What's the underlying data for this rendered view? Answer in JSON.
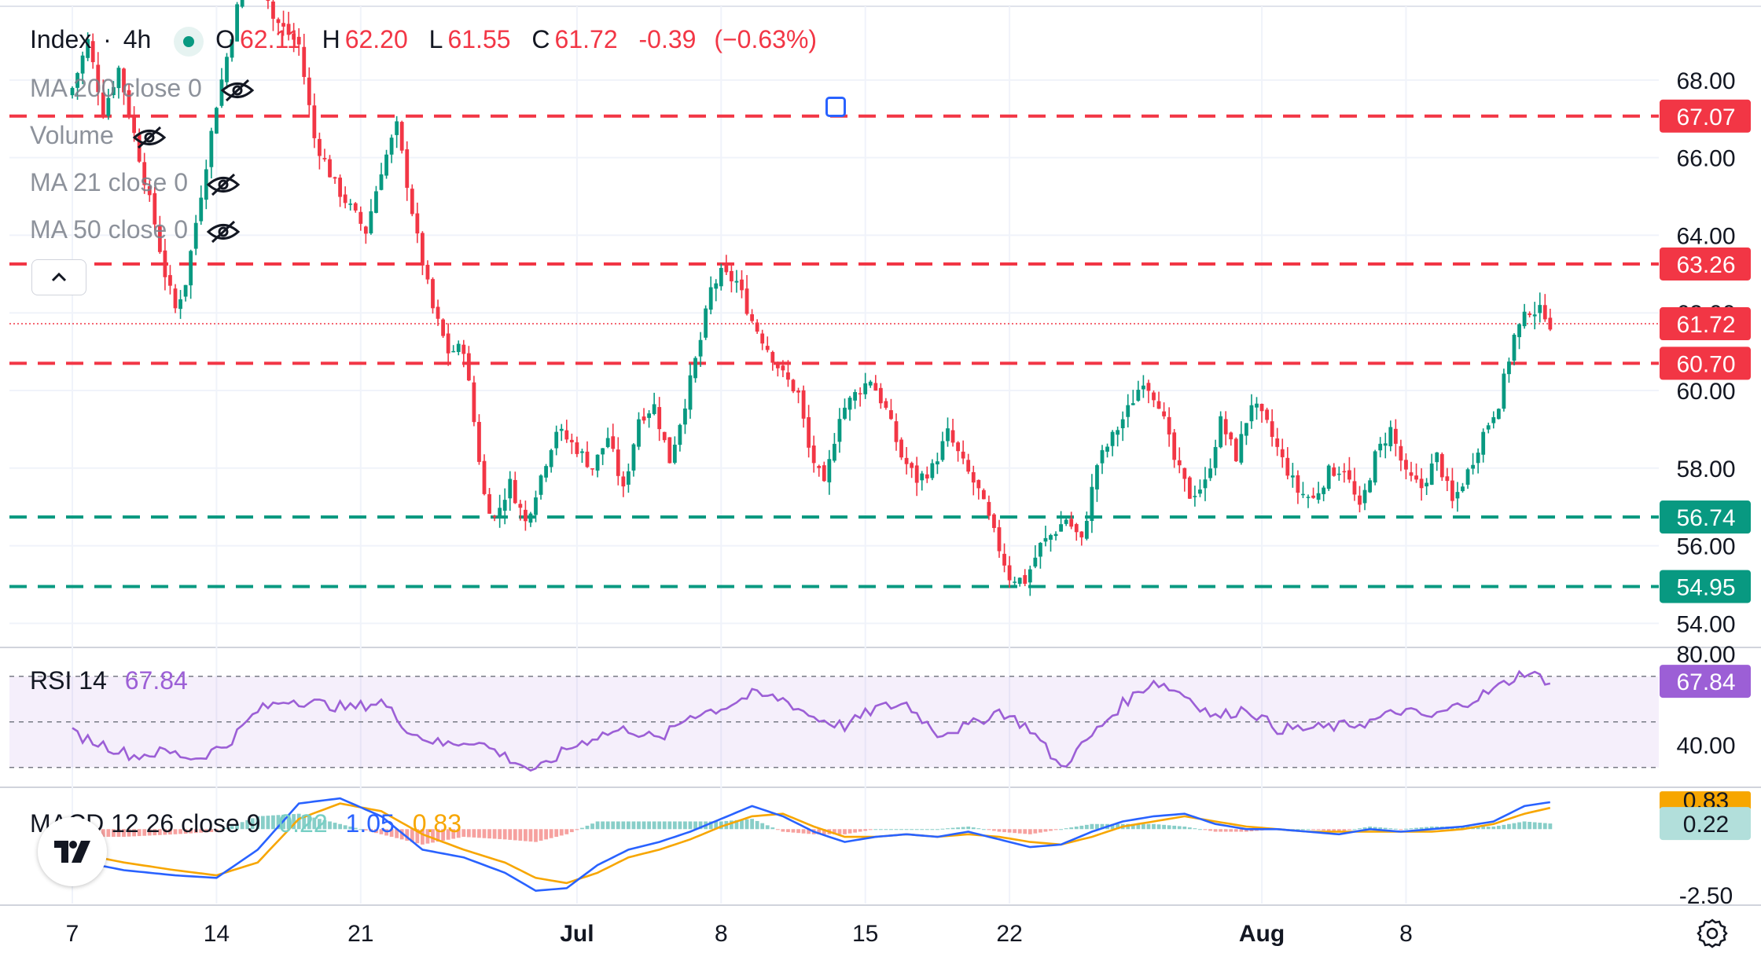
{
  "header": {
    "symbol": "Index",
    "separator": "·",
    "interval": "4h",
    "open_label": "O",
    "open": "62.11",
    "high_label": "H",
    "high": "62.20",
    "low_label": "L",
    "low": "61.55",
    "close_label": "C",
    "close": "61.72",
    "change": "-0.39",
    "change_pct": "(−0.63%)"
  },
  "indicators": {
    "ma200": "MA 200 close 0",
    "volume": "Volume",
    "ma21": "MA 21 close 0",
    "ma50": "MA 50 close 0",
    "rsi_name": "RSI 14",
    "rsi_value": "67.84",
    "macd_name": "MACD 12 26 close 9",
    "macd_hist": "0.22",
    "macd_line": "1.05",
    "macd_signal": "0.83"
  },
  "colors": {
    "up": "#089981",
    "down": "#f23645",
    "rsi": "#9c5fd6",
    "macd": "#2962ff",
    "signal": "#f7a600",
    "resistance": "#f23645",
    "support": "#089981",
    "grid": "#f0f3fa"
  },
  "chart_data": [
    {
      "type": "candlestick",
      "y_axis_ticks": [
        "68.00",
        "66.00",
        "64.00",
        "62.00",
        "60.00",
        "58.00",
        "56.00",
        "54.00"
      ],
      "ylim": [
        53.4,
        69.9
      ],
      "x_axis_ticks": [
        "7",
        "14",
        "21",
        "Jul",
        "8",
        "15",
        "22",
        "Aug",
        "8"
      ],
      "x_tick_positions_bars": [
        0,
        28,
        56,
        98,
        126,
        154,
        182,
        231,
        259
      ],
      "last_close": 61.72,
      "horizontal_levels": [
        {
          "value": 67.07,
          "label": "67.07",
          "kind": "resistance"
        },
        {
          "value": 63.26,
          "label": "63.26",
          "kind": "resistance"
        },
        {
          "value": 61.72,
          "label": "61.72",
          "kind": "last"
        },
        {
          "value": 60.7,
          "label": "60.70",
          "kind": "resistance"
        },
        {
          "value": 56.74,
          "label": "56.74",
          "kind": "support"
        },
        {
          "value": 54.95,
          "label": "54.95",
          "kind": "support"
        }
      ],
      "close_path_anchors": [
        [
          0,
          67.8
        ],
        [
          3,
          69.0
        ],
        [
          6,
          67.2
        ],
        [
          9,
          68.3
        ],
        [
          12,
          66.6
        ],
        [
          16,
          64.3
        ],
        [
          18,
          63.0
        ],
        [
          20,
          62.1
        ],
        [
          22,
          62.8
        ],
        [
          25,
          65.1
        ],
        [
          28,
          67.4
        ],
        [
          31,
          69.2
        ],
        [
          35,
          71.8
        ],
        [
          39,
          69.6
        ],
        [
          44,
          68.9
        ],
        [
          47,
          66.5
        ],
        [
          51,
          65.3
        ],
        [
          54,
          64.7
        ],
        [
          57,
          64.1
        ],
        [
          60,
          65.7
        ],
        [
          63,
          66.8
        ],
        [
          67,
          63.9
        ],
        [
          70,
          62.1
        ],
        [
          73,
          61.0
        ],
        [
          76,
          61.1
        ],
        [
          78,
          59.2
        ],
        [
          80,
          57.3
        ],
        [
          82,
          56.7
        ],
        [
          85,
          57.6
        ],
        [
          88,
          56.6
        ],
        [
          91,
          57.8
        ],
        [
          94,
          59.0
        ],
        [
          98,
          58.5
        ],
        [
          101,
          58.0
        ],
        [
          104,
          58.8
        ],
        [
          107,
          57.4
        ],
        [
          110,
          59.3
        ],
        [
          113,
          59.6
        ],
        [
          116,
          58.2
        ],
        [
          119,
          59.7
        ],
        [
          122,
          61.3
        ],
        [
          124,
          62.6
        ],
        [
          126,
          63.0
        ],
        [
          129,
          62.8
        ],
        [
          132,
          61.8
        ],
        [
          135,
          61.1
        ],
        [
          138,
          60.4
        ],
        [
          141,
          59.9
        ],
        [
          143,
          58.5
        ],
        [
          146,
          57.5
        ],
        [
          149,
          59.4
        ],
        [
          152,
          59.9
        ],
        [
          155,
          60.3
        ],
        [
          158,
          59.5
        ],
        [
          161,
          58.3
        ],
        [
          164,
          57.7
        ],
        [
          167,
          58.0
        ],
        [
          170,
          58.9
        ],
        [
          173,
          58.1
        ],
        [
          176,
          57.4
        ],
        [
          179,
          56.3
        ],
        [
          182,
          55.2
        ],
        [
          185,
          55.1
        ],
        [
          188,
          56.0
        ],
        [
          191,
          56.4
        ],
        [
          193,
          56.7
        ],
        [
          196,
          56.1
        ],
        [
          199,
          58.1
        ],
        [
          202,
          58.8
        ],
        [
          205,
          59.5
        ],
        [
          208,
          60.3
        ],
        [
          211,
          59.7
        ],
        [
          214,
          58.2
        ],
        [
          217,
          57.3
        ],
        [
          220,
          57.6
        ],
        [
          223,
          59.2
        ],
        [
          226,
          58.3
        ],
        [
          229,
          59.7
        ],
        [
          232,
          59.1
        ],
        [
          235,
          58.2
        ],
        [
          238,
          57.4
        ],
        [
          241,
          57.2
        ],
        [
          244,
          57.9
        ],
        [
          247,
          58.0
        ],
        [
          250,
          56.9
        ],
        [
          253,
          58.3
        ],
        [
          256,
          59.0
        ],
        [
          259,
          57.8
        ],
        [
          262,
          57.5
        ],
        [
          265,
          58.3
        ],
        [
          268,
          57.1
        ],
        [
          271,
          57.9
        ],
        [
          274,
          58.9
        ],
        [
          277,
          59.7
        ],
        [
          280,
          61.4
        ],
        [
          283,
          62.1
        ],
        [
          286,
          62.0
        ],
        [
          287,
          61.72
        ]
      ],
      "total_bars": 288
    },
    {
      "type": "line",
      "name": "RSI 14",
      "y_axis_ticks": [
        "80.00",
        "40.00"
      ],
      "ylim": [
        22,
        82
      ],
      "upper_band": 70,
      "middle": 50,
      "lower_band": 30,
      "last_value": 67.84,
      "x_anchors": [
        0,
        6,
        12,
        18,
        24,
        30,
        36,
        42,
        48,
        54,
        60,
        66,
        72,
        78,
        84,
        90,
        96,
        102,
        108,
        114,
        120,
        126,
        132,
        138,
        144,
        150,
        156,
        162,
        168,
        174,
        180,
        186,
        192,
        198,
        204,
        210,
        216,
        222,
        228,
        234,
        240,
        246,
        252,
        258,
        264,
        270,
        276,
        282,
        287
      ],
      "values": [
        45,
        40,
        35,
        37,
        34,
        40,
        55,
        60,
        58,
        56,
        59,
        45,
        40,
        42,
        35,
        28,
        38,
        44,
        47,
        42,
        53,
        56,
        62,
        60,
        52,
        48,
        56,
        58,
        45,
        48,
        55,
        47,
        30,
        44,
        58,
        68,
        62,
        52,
        56,
        47,
        47,
        48,
        50,
        55,
        52,
        58,
        64,
        72,
        67.84
      ]
    },
    {
      "type": "line",
      "name": "MACD 12 26 close 9",
      "y_axis_ticks": [
        "0.83",
        "-2.50"
      ],
      "ylim": [
        -2.9,
        1.6
      ],
      "last_macd": 1.05,
      "last_signal": 0.83,
      "last_hist": 0.22,
      "x_anchors": [
        0,
        10,
        20,
        28,
        36,
        44,
        52,
        60,
        68,
        76,
        84,
        90,
        96,
        102,
        108,
        114,
        120,
        126,
        132,
        138,
        144,
        150,
        156,
        162,
        168,
        174,
        180,
        186,
        192,
        198,
        204,
        210,
        216,
        222,
        228,
        234,
        240,
        246,
        252,
        258,
        264,
        270,
        276,
        282,
        287
      ],
      "macd": [
        -1.2,
        -1.6,
        -1.8,
        -1.9,
        -0.8,
        1.0,
        1.2,
        0.5,
        -0.8,
        -1.1,
        -1.7,
        -2.4,
        -2.3,
        -1.4,
        -0.8,
        -0.5,
        -0.1,
        0.4,
        0.9,
        0.5,
        -0.1,
        -0.5,
        -0.3,
        -0.2,
        -0.3,
        -0.1,
        -0.4,
        -0.7,
        -0.6,
        -0.1,
        0.3,
        0.5,
        0.6,
        0.2,
        0.0,
        0.0,
        -0.1,
        -0.2,
        0.0,
        -0.1,
        0.0,
        0.1,
        0.3,
        0.9,
        1.05
      ],
      "signal": [
        -0.9,
        -1.3,
        -1.6,
        -1.8,
        -1.3,
        0.4,
        1.0,
        0.7,
        -0.2,
        -0.8,
        -1.3,
        -1.9,
        -2.1,
        -1.7,
        -1.1,
        -0.8,
        -0.4,
        0.1,
        0.5,
        0.6,
        0.1,
        -0.3,
        -0.3,
        -0.2,
        -0.3,
        -0.2,
        -0.3,
        -0.5,
        -0.6,
        -0.3,
        0.1,
        0.3,
        0.5,
        0.3,
        0.1,
        0.0,
        -0.1,
        -0.1,
        -0.1,
        -0.1,
        -0.1,
        0.0,
        0.2,
        0.6,
        0.83
      ]
    }
  ]
}
